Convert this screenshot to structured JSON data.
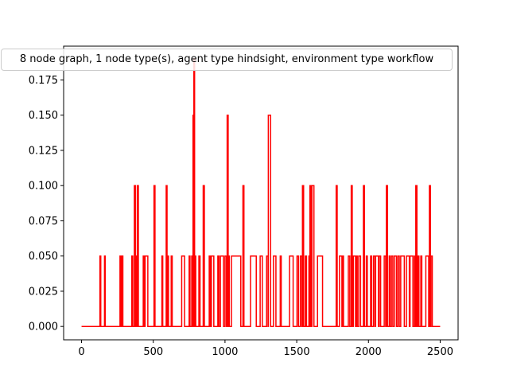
{
  "chart_data": {
    "type": "line",
    "title": "8 node graph, 1 node type(s), agent type hindsight, environment type workflow",
    "xlabel": "",
    "ylabel": "",
    "xlim": [
      -125,
      2625
    ],
    "ylim": [
      -0.0095,
      0.199
    ],
    "xticks": [
      0,
      500,
      1000,
      1500,
      2000,
      2500
    ],
    "yticks": [
      0.0,
      0.025,
      0.05,
      0.075,
      0.1,
      0.125,
      0.15,
      0.175
    ],
    "ytick_labels": [
      "0.000",
      "0.025",
      "0.050",
      "0.075",
      "0.100",
      "0.125",
      "0.150",
      "0.175"
    ],
    "grid": false,
    "series": [
      {
        "color": "#ff0000",
        "step": true,
        "x_start": 0,
        "x_end": 2500,
        "baseline": 0,
        "pulses": [
          [
            128,
            134,
            0.05
          ],
          [
            160,
            165,
            0.05
          ],
          [
            268,
            276,
            0.05
          ],
          [
            282,
            288,
            0.05
          ],
          [
            350,
            357,
            0.05
          ],
          [
            368,
            376,
            0.1
          ],
          [
            380,
            386,
            0.05
          ],
          [
            389,
            396,
            0.1
          ],
          [
            430,
            437,
            0.05
          ],
          [
            443,
            462,
            0.05
          ],
          [
            505,
            512,
            0.1
          ],
          [
            560,
            566,
            0.05
          ],
          [
            590,
            596,
            0.1
          ],
          [
            600,
            606,
            0.05
          ],
          [
            625,
            632,
            0.05
          ],
          [
            698,
            718,
            0.05
          ],
          [
            750,
            756,
            0.05
          ],
          [
            768,
            776,
            0.05
          ],
          [
            777,
            782,
            0.15
          ],
          [
            783,
            788,
            0.19
          ],
          [
            790,
            796,
            0.05
          ],
          [
            818,
            826,
            0.05
          ],
          [
            848,
            856,
            0.1
          ],
          [
            890,
            898,
            0.05
          ],
          [
            905,
            922,
            0.05
          ],
          [
            950,
            958,
            0.05
          ],
          [
            968,
            990,
            0.05
          ],
          [
            1000,
            1010,
            0.05
          ],
          [
            1015,
            1022,
            0.15
          ],
          [
            1024,
            1030,
            0.05
          ],
          [
            1045,
            1110,
            0.05
          ],
          [
            1125,
            1132,
            0.1
          ],
          [
            1178,
            1218,
            0.05
          ],
          [
            1245,
            1260,
            0.05
          ],
          [
            1290,
            1300,
            0.05
          ],
          [
            1302,
            1318,
            0.15
          ],
          [
            1338,
            1355,
            0.05
          ],
          [
            1385,
            1392,
            0.05
          ],
          [
            1450,
            1475,
            0.05
          ],
          [
            1502,
            1512,
            0.05
          ],
          [
            1525,
            1535,
            0.05
          ],
          [
            1540,
            1548,
            0.1
          ],
          [
            1560,
            1568,
            0.05
          ],
          [
            1585,
            1590,
            0.05
          ],
          [
            1592,
            1600,
            0.1
          ],
          [
            1606,
            1620,
            0.1
          ],
          [
            1645,
            1680,
            0.05
          ],
          [
            1775,
            1782,
            0.1
          ],
          [
            1798,
            1815,
            0.05
          ],
          [
            1820,
            1826,
            0.05
          ],
          [
            1860,
            1870,
            0.05
          ],
          [
            1880,
            1887,
            0.1
          ],
          [
            1895,
            1910,
            0.05
          ],
          [
            1915,
            1922,
            0.05
          ],
          [
            1932,
            1945,
            0.05
          ],
          [
            1965,
            1972,
            0.1
          ],
          [
            1985,
            1992,
            0.05
          ],
          [
            2015,
            2022,
            0.05
          ],
          [
            2035,
            2045,
            0.05
          ],
          [
            2050,
            2070,
            0.05
          ],
          [
            2075,
            2085,
            0.05
          ],
          [
            2110,
            2120,
            0.05
          ],
          [
            2125,
            2133,
            0.1
          ],
          [
            2145,
            2150,
            0.05
          ],
          [
            2160,
            2170,
            0.05
          ],
          [
            2180,
            2195,
            0.05
          ],
          [
            2205,
            2215,
            0.05
          ],
          [
            2225,
            2250,
            0.05
          ],
          [
            2265,
            2285,
            0.05
          ],
          [
            2290,
            2310,
            0.05
          ],
          [
            2320,
            2328,
            0.05
          ],
          [
            2330,
            2338,
            0.1
          ],
          [
            2345,
            2352,
            0.05
          ],
          [
            2365,
            2372,
            0.05
          ],
          [
            2400,
            2420,
            0.05
          ],
          [
            2425,
            2432,
            0.1
          ],
          [
            2436,
            2445,
            0.05
          ]
        ]
      }
    ]
  }
}
